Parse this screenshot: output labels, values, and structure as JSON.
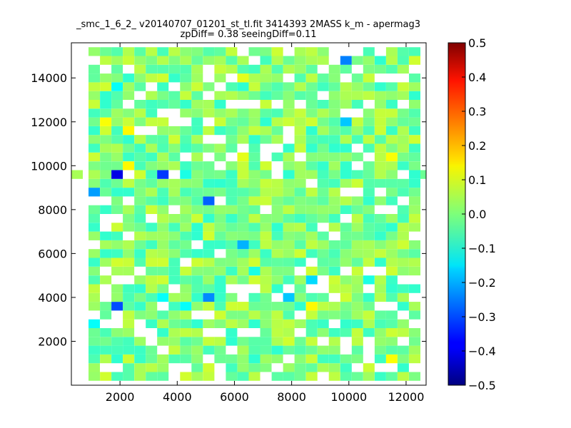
{
  "chart_data": {
    "type": "heatmap",
    "title_line1": "_smc_1_6_2_ v20140707_01201_st_tl.fit 3414393 2MASS k_m - apermag3",
    "title_line2": "zpDiff= 0.38 seeingDiff=0.11",
    "xlabel": "",
    "ylabel": "",
    "xlim": [
      300,
      12700
    ],
    "ylim": [
      0,
      15600
    ],
    "x_ticks": [
      2000,
      4000,
      6000,
      8000,
      10000,
      12000
    ],
    "x_tick_labels": [
      "2000",
      "4000",
      "6000",
      "8000",
      "10000",
      "12000"
    ],
    "y_ticks": [
      2000,
      4000,
      6000,
      8000,
      10000,
      12000,
      14000
    ],
    "y_tick_labels": [
      "2000",
      "4000",
      "6000",
      "8000",
      "10000",
      "12000",
      "14000"
    ],
    "colorbar": {
      "vmin": -0.5,
      "vmax": 0.5,
      "colormap": "jet",
      "ticks": [
        0.5,
        0.4,
        0.3,
        0.2,
        0.1,
        0.0,
        -0.1,
        -0.2,
        -0.3,
        -0.4,
        -0.5
      ],
      "tick_labels": [
        "0.5",
        "0.4",
        "0.3",
        "0.2",
        "0.1",
        "0.0",
        "−0.1",
        "−0.2",
        "−0.3",
        "−0.4",
        "−0.5"
      ]
    },
    "grid": false,
    "cell_size": 390,
    "x_start": 300,
    "y_start": 0,
    "cells": [
      {
        "x": 1500,
        "y": 14800,
        "v": 0.06
      },
      {
        "x": 1900,
        "y": 14800,
        "v": 0.03
      },
      {
        "x": 2700,
        "y": 14800,
        "v": 0.02
      },
      {
        "x": 3500,
        "y": 14800,
        "v": 0.05
      },
      {
        "x": 4300,
        "y": 14800,
        "v": 0.04
      },
      {
        "x": 5100,
        "y": 14800,
        "v": 0.02
      },
      {
        "x": 6300,
        "y": 14800,
        "v": 0.04
      },
      {
        "x": 7100,
        "y": 14800,
        "v": -0.06
      },
      {
        "x": 7900,
        "y": 14800,
        "v": -0.02
      },
      {
        "x": 8700,
        "y": 14800,
        "v": 0.04
      },
      {
        "x": 9900,
        "y": 14800,
        "v": -0.25
      },
      {
        "x": 10700,
        "y": 14800,
        "v": 0.02
      },
      {
        "x": 11500,
        "y": 14800,
        "v": 0.05
      },
      {
        "x": 1100,
        "y": 14000,
        "v": -0.03
      },
      {
        "x": 1500,
        "y": 14000,
        "v": 0.02
      },
      {
        "x": 3100,
        "y": 14000,
        "v": 0.06
      },
      {
        "x": 4700,
        "y": 14000,
        "v": 0.03
      },
      {
        "x": 6300,
        "y": 14000,
        "v": 0.1
      },
      {
        "x": 7500,
        "y": 14000,
        "v": 0.02
      },
      {
        "x": 8700,
        "y": 14000,
        "v": 0.06
      },
      {
        "x": 10500,
        "y": 14000,
        "v": -0.2
      },
      {
        "x": 11700,
        "y": 14000,
        "v": 0.04
      },
      {
        "x": 1900,
        "y": 13600,
        "v": -0.12
      },
      {
        "x": 2300,
        "y": 13600,
        "v": 0.03
      },
      {
        "x": 5100,
        "y": 13600,
        "v": 0.0
      },
      {
        "x": 9900,
        "y": 13600,
        "v": 0.05
      },
      {
        "x": 1500,
        "y": 12000,
        "v": 0.12
      },
      {
        "x": 4900,
        "y": 12800,
        "v": 0.1
      },
      {
        "x": 6500,
        "y": 12000,
        "v": -0.12
      },
      {
        "x": 9900,
        "y": 12000,
        "v": -0.18
      },
      {
        "x": 10700,
        "y": 12400,
        "v": 0.01
      },
      {
        "x": 2300,
        "y": 11600,
        "v": 0.13
      },
      {
        "x": 8100,
        "y": 11600,
        "v": -0.22
      },
      {
        "x": 8500,
        "y": 11600,
        "v": -0.35
      },
      {
        "x": 7500,
        "y": 11200,
        "v": 0.04
      },
      {
        "x": 6300,
        "y": 10400,
        "v": 0.1
      },
      {
        "x": 7700,
        "y": 10800,
        "v": -0.06
      },
      {
        "x": 8900,
        "y": 10400,
        "v": -0.16
      },
      {
        "x": 11500,
        "y": 10400,
        "v": 0.12
      },
      {
        "x": 11100,
        "y": 10800,
        "v": 0.06
      },
      {
        "x": 2300,
        "y": 10000,
        "v": 0.13
      },
      {
        "x": 1900,
        "y": 9600,
        "v": -0.4
      },
      {
        "x": 3500,
        "y": 9600,
        "v": -0.32
      },
      {
        "x": 4300,
        "y": 9600,
        "v": -0.1
      },
      {
        "x": 500,
        "y": 9600,
        "v": 0.04
      },
      {
        "x": 12700,
        "y": 9600,
        "v": -0.02
      },
      {
        "x": 7900,
        "y": 9600,
        "v": -0.08
      },
      {
        "x": 1100,
        "y": 8800,
        "v": -0.22
      },
      {
        "x": 5100,
        "y": 8400,
        "v": -0.28
      },
      {
        "x": 5900,
        "y": 8400,
        "v": -0.05
      },
      {
        "x": 8500,
        "y": 8800,
        "v": -0.06
      },
      {
        "x": 9300,
        "y": 8400,
        "v": 0.07
      },
      {
        "x": 3500,
        "y": 7600,
        "v": 0.05
      },
      {
        "x": 4700,
        "y": 7200,
        "v": -0.08
      },
      {
        "x": 5100,
        "y": 6800,
        "v": 0.08
      },
      {
        "x": 6300,
        "y": 6400,
        "v": -0.2
      },
      {
        "x": 6700,
        "y": 5200,
        "v": -0.1
      },
      {
        "x": 7700,
        "y": 4800,
        "v": -0.05
      },
      {
        "x": 8700,
        "y": 4800,
        "v": -0.16
      },
      {
        "x": 10700,
        "y": 4800,
        "v": -0.1
      },
      {
        "x": 3500,
        "y": 4000,
        "v": -0.12
      },
      {
        "x": 5100,
        "y": 4000,
        "v": -0.24
      },
      {
        "x": 7900,
        "y": 4000,
        "v": -0.18
      },
      {
        "x": 1900,
        "y": 3600,
        "v": -0.3
      },
      {
        "x": 4300,
        "y": 3600,
        "v": -0.12
      },
      {
        "x": 8700,
        "y": 3600,
        "v": 0.13
      },
      {
        "x": 1100,
        "y": 2800,
        "v": -0.12
      },
      {
        "x": 6500,
        "y": 3200,
        "v": -0.16
      },
      {
        "x": 10500,
        "y": 2800,
        "v": -0.26
      },
      {
        "x": 11500,
        "y": 1200,
        "v": 0.12
      },
      {
        "x": 9300,
        "y": 400,
        "v": -0.24
      },
      {
        "x": 6700,
        "y": 1200,
        "v": -0.08
      },
      {
        "x": 8700,
        "y": 1200,
        "v": 0.07
      },
      {
        "x": 4300,
        "y": 400,
        "v": 0.08
      },
      {
        "x": 2700,
        "y": 800,
        "v": 0.04
      }
    ]
  }
}
